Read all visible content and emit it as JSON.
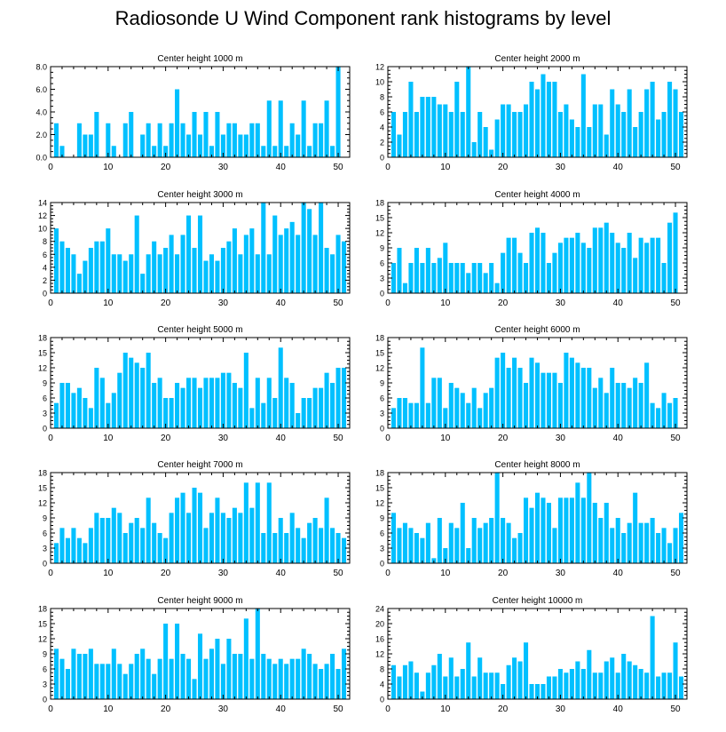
{
  "figure": {
    "title": "Radiosonde U Wind Component rank histograms by level",
    "bar_color": "#00C0FF",
    "axis_color": "#000000"
  },
  "chart_data": [
    {
      "type": "bar",
      "title": "Center height 1000 m",
      "xlim": [
        0,
        52
      ],
      "ylim": [
        0,
        8
      ],
      "yticks": [
        0,
        2,
        4,
        6,
        8
      ],
      "ytick_labels": [
        "0.0",
        "2.0",
        "4.0",
        "6.0",
        "8.0"
      ],
      "xticks": [
        0,
        10,
        20,
        30,
        40,
        50
      ],
      "values": [
        0,
        3,
        1,
        0,
        0,
        3,
        2,
        2,
        4,
        0,
        3,
        1,
        0,
        3,
        4,
        0,
        2,
        3,
        1,
        3,
        1,
        3,
        6,
        3,
        2,
        4,
        2,
        4,
        1,
        4,
        2,
        3,
        3,
        2,
        2,
        3,
        3,
        1,
        5,
        1,
        5,
        1,
        3,
        2,
        5,
        1,
        3,
        3,
        5,
        1,
        8
      ]
    },
    {
      "type": "bar",
      "title": "Center height 2000 m",
      "xlim": [
        0,
        52
      ],
      "ylim": [
        0,
        12
      ],
      "yticks": [
        0,
        2,
        4,
        6,
        8,
        10,
        12
      ],
      "ytick_labels": [
        "0",
        "2",
        "4",
        "6",
        "8",
        "10",
        "12"
      ],
      "xticks": [
        0,
        10,
        20,
        30,
        40,
        50
      ],
      "values": [
        0,
        6,
        3,
        6,
        10,
        6,
        8,
        8,
        8,
        7,
        7,
        6,
        10,
        6,
        12,
        2,
        6,
        4,
        1,
        5,
        7,
        7,
        6,
        6,
        7,
        10,
        9,
        11,
        10,
        10,
        6,
        7,
        5,
        4,
        11,
        4,
        7,
        7,
        3,
        9,
        7,
        6,
        9,
        4,
        6,
        9,
        10,
        5,
        6,
        10,
        9,
        6
      ]
    },
    {
      "type": "bar",
      "title": "Center height 3000 m",
      "xlim": [
        0,
        52
      ],
      "ylim": [
        0,
        14
      ],
      "yticks": [
        0,
        2,
        4,
        6,
        8,
        10,
        12,
        14
      ],
      "ytick_labels": [
        "0",
        "2",
        "4",
        "6",
        "8",
        "10",
        "12",
        "14"
      ],
      "xticks": [
        0,
        10,
        20,
        30,
        40,
        50
      ],
      "values": [
        0,
        10,
        8,
        7,
        6,
        3,
        5,
        7,
        8,
        8,
        10,
        6,
        6,
        5,
        6,
        12,
        3,
        6,
        8,
        6,
        7,
        9,
        6,
        9,
        12,
        7,
        12,
        5,
        6,
        5,
        7,
        8,
        10,
        6,
        9,
        10,
        6,
        14,
        6,
        12,
        9,
        10,
        11,
        9,
        14,
        13,
        9,
        14,
        7,
        6,
        9,
        8
      ]
    },
    {
      "type": "bar",
      "title": "Center height 4000 m",
      "xlim": [
        0,
        52
      ],
      "ylim": [
        0,
        18
      ],
      "yticks": [
        0,
        3,
        6,
        9,
        12,
        15,
        18
      ],
      "ytick_labels": [
        "0",
        "3",
        "6",
        "9",
        "12",
        "15",
        "18"
      ],
      "xticks": [
        0,
        10,
        20,
        30,
        40,
        50
      ],
      "values": [
        0,
        6,
        9,
        2,
        6,
        9,
        6,
        9,
        6,
        7,
        10,
        6,
        6,
        6,
        4,
        6,
        6,
        4,
        6,
        2,
        8,
        11,
        11,
        8,
        6,
        12,
        13,
        12,
        6,
        8,
        10,
        11,
        11,
        12,
        10,
        9,
        13,
        13,
        14,
        12,
        10,
        9,
        12,
        7,
        11,
        10,
        11,
        11,
        6,
        14,
        16
      ]
    },
    {
      "type": "bar",
      "title": "Center height 5000 m",
      "xlim": [
        0,
        52
      ],
      "ylim": [
        0,
        18
      ],
      "yticks": [
        0,
        3,
        6,
        9,
        12,
        15,
        18
      ],
      "ytick_labels": [
        "0",
        "3",
        "6",
        "9",
        "12",
        "15",
        "18"
      ],
      "xticks": [
        0,
        10,
        20,
        30,
        40,
        50
      ],
      "values": [
        0,
        5,
        9,
        9,
        7,
        8,
        6,
        4,
        12,
        10,
        5,
        7,
        11,
        15,
        14,
        13,
        12,
        15,
        9,
        10,
        6,
        6,
        9,
        8,
        10,
        10,
        8,
        10,
        10,
        10,
        11,
        11,
        9,
        8,
        15,
        4,
        10,
        5,
        10,
        6,
        16,
        10,
        9,
        3,
        6,
        6,
        8,
        8,
        11,
        9,
        12,
        12
      ]
    },
    {
      "type": "bar",
      "title": "Center height 6000 m",
      "xlim": [
        0,
        52
      ],
      "ylim": [
        0,
        18
      ],
      "yticks": [
        0,
        3,
        6,
        9,
        12,
        15,
        18
      ],
      "ytick_labels": [
        "0",
        "3",
        "6",
        "9",
        "12",
        "15",
        "18"
      ],
      "xticks": [
        0,
        10,
        20,
        30,
        40,
        50
      ],
      "values": [
        0,
        4,
        6,
        6,
        5,
        5,
        16,
        5,
        10,
        10,
        4,
        9,
        8,
        7,
        5,
        8,
        4,
        7,
        8,
        14,
        15,
        12,
        14,
        12,
        9,
        14,
        13,
        11,
        11,
        11,
        9,
        15,
        14,
        13,
        12,
        12,
        8,
        10,
        7,
        12,
        9,
        9,
        8,
        10,
        9,
        13,
        5,
        4,
        7,
        5,
        6
      ]
    },
    {
      "type": "bar",
      "title": "Center height 7000 m",
      "xlim": [
        0,
        52
      ],
      "ylim": [
        0,
        18
      ],
      "yticks": [
        0,
        3,
        6,
        9,
        12,
        15,
        18
      ],
      "ytick_labels": [
        "0",
        "3",
        "6",
        "9",
        "12",
        "15",
        "18"
      ],
      "xticks": [
        0,
        10,
        20,
        30,
        40,
        50
      ],
      "values": [
        0,
        4,
        7,
        5,
        7,
        5,
        4,
        7,
        10,
        9,
        9,
        11,
        10,
        6,
        8,
        9,
        7,
        13,
        8,
        6,
        5,
        10,
        13,
        14,
        10,
        15,
        14,
        7,
        10,
        13,
        10,
        9,
        11,
        10,
        16,
        11,
        16,
        6,
        16,
        6,
        9,
        6,
        10,
        7,
        5,
        8,
        9,
        7,
        13,
        7,
        6,
        5
      ]
    },
    {
      "type": "bar",
      "title": "Center height 8000 m",
      "xlim": [
        0,
        52
      ],
      "ylim": [
        0,
        18
      ],
      "yticks": [
        0,
        3,
        6,
        9,
        12,
        15,
        18
      ],
      "ytick_labels": [
        "0",
        "3",
        "6",
        "9",
        "12",
        "15",
        "18"
      ],
      "xticks": [
        0,
        10,
        20,
        30,
        40,
        50
      ],
      "values": [
        0,
        10,
        7,
        8,
        7,
        6,
        5,
        8,
        1,
        9,
        3,
        8,
        7,
        12,
        3,
        9,
        7,
        8,
        9,
        18,
        9,
        8,
        5,
        6,
        13,
        11,
        14,
        13,
        12,
        7,
        13,
        13,
        13,
        16,
        13,
        18,
        12,
        9,
        12,
        7,
        9,
        6,
        8,
        14,
        8,
        8,
        9,
        6,
        7,
        4,
        7,
        10
      ]
    },
    {
      "type": "bar",
      "title": "Center height 9000 m",
      "xlim": [
        0,
        52
      ],
      "ylim": [
        0,
        18
      ],
      "yticks": [
        0,
        3,
        6,
        9,
        12,
        15,
        18
      ],
      "ytick_labels": [
        "0",
        "3",
        "6",
        "9",
        "12",
        "15",
        "18"
      ],
      "xticks": [
        0,
        10,
        20,
        30,
        40,
        50
      ],
      "values": [
        0,
        10,
        8,
        6,
        10,
        9,
        9,
        10,
        7,
        7,
        7,
        10,
        7,
        5,
        7,
        9,
        10,
        8,
        5,
        8,
        15,
        8,
        15,
        9,
        8,
        4,
        13,
        8,
        10,
        12,
        7,
        12,
        9,
        9,
        16,
        8,
        18,
        9,
        8,
        7,
        8,
        7,
        8,
        8,
        10,
        9,
        7,
        6,
        7,
        9,
        6,
        10
      ]
    },
    {
      "type": "bar",
      "title": "Center height 10000 m",
      "xlim": [
        0,
        52
      ],
      "ylim": [
        0,
        24
      ],
      "yticks": [
        0,
        4,
        8,
        12,
        16,
        20,
        24
      ],
      "ytick_labels": [
        "0",
        "4",
        "8",
        "12",
        "16",
        "20",
        "24"
      ],
      "xticks": [
        0,
        10,
        20,
        30,
        40,
        50
      ],
      "values": [
        0,
        9,
        6,
        9,
        10,
        7,
        2,
        7,
        9,
        12,
        6,
        11,
        6,
        8,
        15,
        6,
        11,
        7,
        7,
        7,
        4,
        9,
        11,
        10,
        15,
        4,
        4,
        4,
        6,
        6,
        8,
        7,
        8,
        10,
        8,
        13,
        7,
        7,
        10,
        11,
        7,
        12,
        10,
        9,
        8,
        7,
        22,
        6,
        7,
        7,
        15,
        6
      ]
    }
  ]
}
